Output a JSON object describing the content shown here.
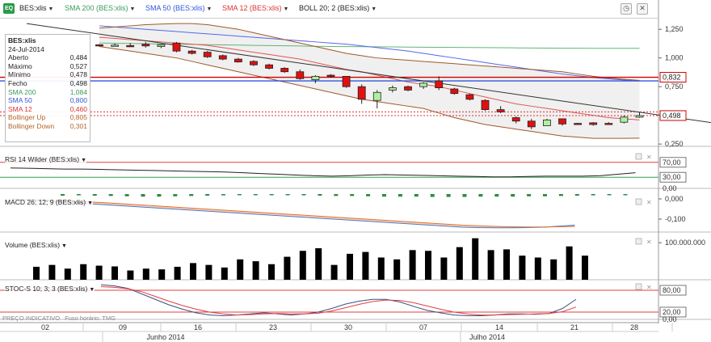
{
  "toolbar": {
    "logo_text": "EQ",
    "symbol": "BES:xlis",
    "indicators": [
      {
        "label": "SMA 200 (BES:xlis)",
        "color": "#3a9a5a"
      },
      {
        "label": "SMA 50 (BES:xlis)",
        "color": "#3355dd"
      },
      {
        "label": "SMA 12 (BES:xlis)",
        "color": "#dd3333"
      },
      {
        "label": "BOLL 20; 2 (BES:xlis)",
        "color": "#222222"
      }
    ],
    "icons": [
      "clock-icon",
      "close-icon"
    ]
  },
  "infobox": {
    "title": "BES:xlis",
    "date": "24-Jul-2014",
    "rows": [
      {
        "label": "Aberto",
        "value": "0,484",
        "color": "#222222"
      },
      {
        "label": "Máximo",
        "value": "0,527",
        "color": "#222222"
      },
      {
        "label": "Mínimo",
        "value": "0,478",
        "color": "#222222"
      },
      {
        "label": "Fecho",
        "value": "0,498",
        "color": "#222222"
      },
      {
        "label": "SMA 200",
        "value": "1,084",
        "color": "#3a9a5a"
      },
      {
        "label": "SMA 50",
        "value": "0,800",
        "color": "#3355dd"
      },
      {
        "label": "SMA 12",
        "value": "0,460",
        "color": "#dd3333"
      },
      {
        "label": "Bollinger Up",
        "value": "0,805",
        "color": "#b5652a"
      },
      {
        "label": "Bollinger Down",
        "value": "0,301",
        "color": "#b5652a"
      }
    ]
  },
  "panes": {
    "rsi_label": "RSI 14 Wilder (BES:xlis)",
    "macd_label": "MACD 26; 12; 9 (BES:xlis)",
    "volume_label": "Volume (BES:xlis)",
    "stoc_label": "STOC-S 10; 3; 3 (BES:xlis)"
  },
  "footnote": {
    "left": "PREÇO INDICATIVO",
    "right": "Fuso horário: TMG"
  },
  "chart_data": {
    "type": "candlestick",
    "symbol": "BES:xlis",
    "price_axis": {
      "ticks": [
        "1,250",
        "1,000",
        "0,750",
        "0,500",
        "0,250"
      ],
      "values": [
        1.25,
        1.0,
        0.75,
        0.5,
        0.25
      ],
      "range": [
        0.23,
        1.35
      ]
    },
    "price_markers": [
      {
        "label": "0,832",
        "value": 0.832,
        "color": "#cc0000"
      },
      {
        "label": "0,498",
        "value": 0.498,
        "color": "#cc0000"
      }
    ],
    "x_days": [
      "02",
      "09",
      "16",
      "23",
      "30",
      "07",
      "14",
      "21",
      "28"
    ],
    "x_months": [
      "Junho 2014",
      "Julho 2014"
    ],
    "candles": [
      {
        "open": 1.115,
        "high": 1.12,
        "low": 1.1,
        "close": 1.108
      },
      {
        "open": 1.11,
        "high": 1.125,
        "low": 1.1,
        "close": 1.112
      },
      {
        "open": 1.108,
        "high": 1.13,
        "low": 1.095,
        "close": 1.1
      },
      {
        "open": 1.12,
        "high": 1.14,
        "low": 1.09,
        "close": 1.105
      },
      {
        "open": 1.1,
        "high": 1.12,
        "low": 1.085,
        "close": 1.115
      },
      {
        "open": 1.13,
        "high": 1.14,
        "low": 1.05,
        "close": 1.06
      },
      {
        "open": 1.06,
        "high": 1.07,
        "low": 1.03,
        "close": 1.04
      },
      {
        "open": 1.05,
        "high": 1.06,
        "low": 1.0,
        "close": 1.01
      },
      {
        "open": 1.02,
        "high": 1.03,
        "low": 0.98,
        "close": 0.99
      },
      {
        "open": 0.99,
        "high": 1.0,
        "low": 0.96,
        "close": 0.965
      },
      {
        "open": 0.97,
        "high": 0.98,
        "low": 0.93,
        "close": 0.94
      },
      {
        "open": 0.94,
        "high": 0.95,
        "low": 0.9,
        "close": 0.91
      },
      {
        "open": 0.91,
        "high": 0.92,
        "low": 0.87,
        "close": 0.88
      },
      {
        "open": 0.88,
        "high": 0.9,
        "low": 0.81,
        "close": 0.82
      },
      {
        "open": 0.81,
        "high": 0.85,
        "low": 0.78,
        "close": 0.84
      },
      {
        "open": 0.85,
        "high": 0.86,
        "low": 0.83,
        "close": 0.84
      },
      {
        "open": 0.84,
        "high": 0.84,
        "low": 0.74,
        "close": 0.75
      },
      {
        "open": 0.75,
        "high": 0.77,
        "low": 0.6,
        "close": 0.64
      },
      {
        "open": 0.63,
        "high": 0.72,
        "low": 0.56,
        "close": 0.7
      },
      {
        "open": 0.72,
        "high": 0.76,
        "low": 0.7,
        "close": 0.74
      },
      {
        "open": 0.75,
        "high": 0.76,
        "low": 0.71,
        "close": 0.72
      },
      {
        "open": 0.75,
        "high": 0.79,
        "low": 0.73,
        "close": 0.78
      },
      {
        "open": 0.8,
        "high": 0.84,
        "low": 0.72,
        "close": 0.74
      },
      {
        "open": 0.73,
        "high": 0.74,
        "low": 0.68,
        "close": 0.69
      },
      {
        "open": 0.68,
        "high": 0.69,
        "low": 0.63,
        "close": 0.64
      },
      {
        "open": 0.63,
        "high": 0.64,
        "low": 0.54,
        "close": 0.55
      },
      {
        "open": 0.55,
        "high": 0.58,
        "low": 0.52,
        "close": 0.53
      },
      {
        "open": 0.48,
        "high": 0.49,
        "low": 0.43,
        "close": 0.45
      },
      {
        "open": 0.45,
        "high": 0.47,
        "low": 0.38,
        "close": 0.4
      },
      {
        "open": 0.41,
        "high": 0.47,
        "low": 0.41,
        "close": 0.46
      },
      {
        "open": 0.47,
        "high": 0.47,
        "low": 0.41,
        "close": 0.425
      },
      {
        "open": 0.43,
        "high": 0.435,
        "low": 0.42,
        "close": 0.425
      },
      {
        "open": 0.435,
        "high": 0.44,
        "low": 0.41,
        "close": 0.42
      },
      {
        "open": 0.43,
        "high": 0.44,
        "low": 0.42,
        "close": 0.425
      },
      {
        "open": 0.44,
        "high": 0.5,
        "low": 0.43,
        "close": 0.485
      },
      {
        "open": 0.484,
        "high": 0.527,
        "low": 0.478,
        "close": 0.498
      }
    ],
    "candle_slots": [
      0,
      1,
      2,
      3,
      4,
      5,
      6,
      7,
      8,
      9,
      10,
      11,
      12,
      13,
      14,
      15,
      16,
      17,
      18,
      19,
      20,
      21,
      22,
      23,
      24,
      25,
      26,
      27,
      28,
      29,
      30,
      31,
      32,
      33,
      34,
      35
    ],
    "sma200": [
      1.13,
      1.128,
      1.126,
      1.124,
      1.122,
      1.12,
      1.118,
      1.116,
      1.114,
      1.112,
      1.11,
      1.108,
      1.106,
      1.104,
      1.102,
      1.1,
      1.099,
      1.098,
      1.097,
      1.096,
      1.095,
      1.094,
      1.093,
      1.092,
      1.091,
      1.09,
      1.089,
      1.088,
      1.087,
      1.086,
      1.085,
      1.085,
      1.084,
      1.084,
      1.084,
      1.084
    ],
    "sma50": [
      1.28,
      1.27,
      1.26,
      1.25,
      1.24,
      1.23,
      1.22,
      1.21,
      1.2,
      1.19,
      1.18,
      1.17,
      1.16,
      1.15,
      1.14,
      1.13,
      1.12,
      1.105,
      1.09,
      1.075,
      1.06,
      1.04,
      1.02,
      1.0,
      0.98,
      0.96,
      0.94,
      0.92,
      0.9,
      0.88,
      0.86,
      0.845,
      0.83,
      0.818,
      0.808,
      0.8
    ],
    "sma12": [
      1.18,
      1.17,
      1.16,
      1.15,
      1.14,
      1.13,
      1.12,
      1.11,
      1.09,
      1.07,
      1.05,
      1.03,
      1.01,
      0.99,
      0.96,
      0.93,
      0.9,
      0.88,
      0.85,
      0.82,
      0.79,
      0.77,
      0.75,
      0.72,
      0.69,
      0.66,
      0.63,
      0.6,
      0.58,
      0.56,
      0.54,
      0.52,
      0.5,
      0.48,
      0.47,
      0.46
    ],
    "boll_up": [
      1.26,
      1.27,
      1.28,
      1.29,
      1.295,
      1.3,
      1.3,
      1.29,
      1.27,
      1.25,
      1.22,
      1.19,
      1.16,
      1.13,
      1.1,
      1.07,
      1.04,
      1.02,
      1.0,
      0.99,
      0.98,
      0.97,
      0.96,
      0.95,
      0.94,
      0.93,
      0.92,
      0.91,
      0.9,
      0.89,
      0.88,
      0.86,
      0.84,
      0.825,
      0.815,
      0.805
    ],
    "boll_down": [
      1.1,
      1.08,
      1.06,
      1.04,
      1.02,
      1.0,
      0.97,
      0.94,
      0.91,
      0.88,
      0.85,
      0.82,
      0.79,
      0.76,
      0.73,
      0.7,
      0.67,
      0.64,
      0.62,
      0.6,
      0.58,
      0.56,
      0.52,
      0.48,
      0.45,
      0.42,
      0.4,
      0.38,
      0.36,
      0.34,
      0.32,
      0.31,
      0.3,
      0.3,
      0.3,
      0.301
    ],
    "horizontal_lines": [
      {
        "value": 0.832,
        "color": "#cc0000",
        "style": "solid"
      },
      {
        "value": 0.8,
        "color": "#3355dd",
        "style": "solid"
      },
      {
        "value": 0.53,
        "color": "#dd3333",
        "style": "dotted"
      },
      {
        "value": 0.498,
        "color": "#dd3333",
        "style": "dotted"
      }
    ],
    "trendline": {
      "from": {
        "slot": 0,
        "value": 1.3
      },
      "to": {
        "slot": 40,
        "value": 0.43
      }
    },
    "rsi": {
      "ticks": [
        "70,00",
        "30,00",
        "0,00"
      ],
      "levels": [
        70,
        30
      ],
      "values": [
        55,
        54,
        53,
        52,
        52,
        51,
        50,
        49,
        48,
        47,
        46,
        45,
        44,
        42,
        40,
        38,
        36,
        34,
        33,
        34,
        36,
        37,
        36,
        35,
        34,
        33,
        32,
        31,
        31,
        32,
        33,
        33,
        33,
        34,
        38,
        42
      ]
    },
    "macd": {
      "ticks": [
        "0,000",
        "-0,100"
      ],
      "macd": [
        0.0,
        -0.005,
        -0.01,
        -0.015,
        -0.02,
        -0.025,
        -0.03,
        -0.035,
        -0.04,
        -0.045,
        -0.05,
        -0.055,
        -0.06,
        -0.065,
        -0.07,
        -0.075,
        -0.08,
        -0.085,
        -0.09,
        -0.095,
        -0.1,
        -0.105,
        -0.11,
        -0.115,
        -0.12,
        -0.125,
        -0.13,
        -0.135,
        -0.14,
        -0.142,
        -0.143,
        -0.143,
        -0.142,
        -0.14,
        -0.135,
        -0.13
      ],
      "signal": [
        -0.005,
        -0.004,
        -0.005,
        -0.008,
        -0.012,
        -0.016,
        -0.02,
        -0.025,
        -0.03,
        -0.035,
        -0.04,
        -0.045,
        -0.05,
        -0.055,
        -0.06,
        -0.065,
        -0.07,
        -0.075,
        -0.08,
        -0.085,
        -0.09,
        -0.095,
        -0.1,
        -0.105,
        -0.11,
        -0.115,
        -0.12,
        -0.125,
        -0.13,
        -0.133,
        -0.136,
        -0.138,
        -0.139,
        -0.139,
        -0.138,
        -0.136
      ],
      "histogram": [
        0.005,
        0.004,
        0.005,
        0.006,
        0.007,
        0.008,
        0.008,
        0.007,
        0.006,
        0.005,
        0.004,
        0.003,
        0.002,
        0.0,
        -0.002,
        -0.004,
        -0.005,
        -0.006,
        -0.006,
        -0.007,
        -0.008,
        -0.008,
        -0.008,
        -0.009,
        -0.009,
        -0.009,
        -0.008,
        -0.008,
        -0.008,
        -0.007,
        -0.007,
        -0.006,
        -0.005,
        -0.004,
        -0.003,
        -0.002
      ]
    },
    "volume": {
      "ticks": [
        "100.000.000"
      ],
      "values": [
        35,
        40,
        30,
        42,
        38,
        36,
        25,
        30,
        28,
        35,
        45,
        40,
        33,
        55,
        50,
        42,
        62,
        78,
        85,
        40,
        70,
        75,
        60,
        55,
        80,
        78,
        60,
        88,
        112,
        80,
        82,
        65,
        60,
        55,
        90,
        65
      ]
    },
    "stoc": {
      "ticks": [
        "80,00",
        "20,00",
        "0,00"
      ],
      "levels": [
        80,
        20
      ],
      "k": [
        95,
        92,
        85,
        70,
        55,
        40,
        28,
        18,
        12,
        10,
        12,
        15,
        18,
        15,
        12,
        15,
        20,
        30,
        42,
        50,
        55,
        55,
        48,
        36,
        25,
        18,
        12,
        10,
        10,
        12,
        15,
        15,
        14,
        16,
        30,
        55
      ],
      "d": [
        90,
        88,
        84,
        76,
        63,
        50,
        38,
        28,
        20,
        15,
        12,
        13,
        15,
        16,
        15,
        15,
        17,
        23,
        32,
        41,
        49,
        53,
        52,
        46,
        37,
        28,
        20,
        15,
        12,
        12,
        13,
        14,
        15,
        16,
        21,
        34
      ]
    }
  }
}
